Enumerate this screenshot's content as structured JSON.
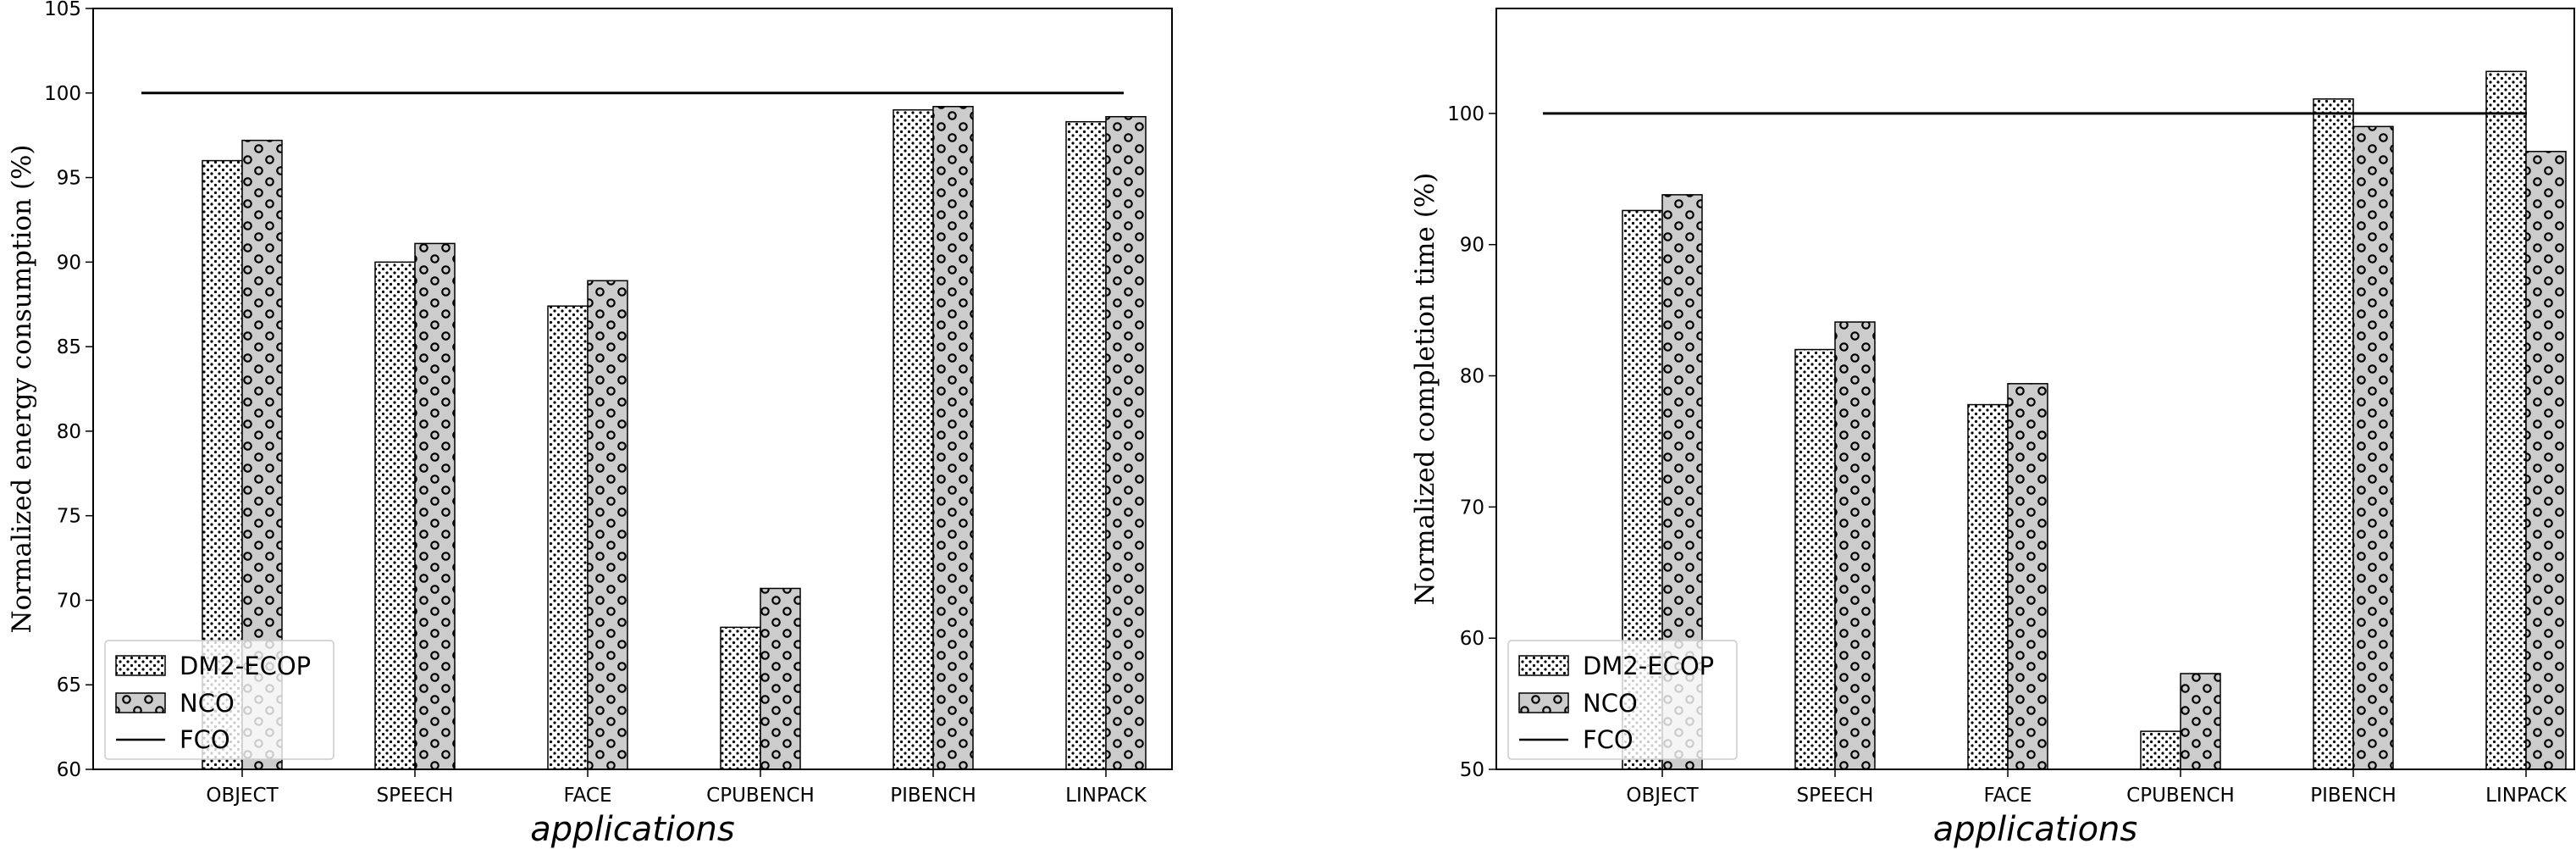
{
  "chart_data": [
    {
      "type": "bar",
      "categories": [
        "OBJECT",
        "SPEECH",
        "FACE",
        "CPUBENCH",
        "PIBENCH",
        "LINPACK"
      ],
      "series": [
        {
          "name": "DM2-ECOP",
          "values": [
            96.0,
            90.0,
            87.4,
            68.4,
            99.0,
            98.3
          ]
        },
        {
          "name": "NCO",
          "values": [
            97.2,
            91.1,
            88.9,
            70.7,
            99.2,
            98.6
          ]
        }
      ],
      "reference_line": {
        "name": "FCO",
        "value": 100
      },
      "xlabel": "applications",
      "ylabel": "Normalized energy consumption (%)",
      "ylim": [
        60,
        105
      ],
      "yticks": [
        60,
        65,
        70,
        75,
        80,
        85,
        90,
        95,
        100,
        105
      ],
      "grid": false,
      "legend_position": "lower-left",
      "colors": {
        "DM2-ECOP": "#ffffff",
        "NCO": "#cccccc",
        "FCO": "#000000"
      }
    },
    {
      "type": "bar",
      "categories": [
        "OBJECT",
        "SPEECH",
        "FACE",
        "CPUBENCH",
        "PIBENCH",
        "LINPACK"
      ],
      "series": [
        {
          "name": "DM2-ECOP",
          "values": [
            92.6,
            82.0,
            77.8,
            52.9,
            101.1,
            103.2
          ]
        },
        {
          "name": "NCO",
          "values": [
            93.8,
            84.1,
            79.4,
            57.3,
            99.0,
            97.1
          ]
        }
      ],
      "reference_line": {
        "name": "FCO",
        "value": 100
      },
      "xlabel": "applications",
      "ylabel": "Normalized completion time (%)",
      "ylim": [
        50,
        108
      ],
      "yticks": [
        50,
        60,
        70,
        80,
        90,
        100
      ],
      "grid": false,
      "legend_position": "lower-left",
      "colors": {
        "DM2-ECOP": "#ffffff",
        "NCO": "#cccccc",
        "FCO": "#000000"
      }
    }
  ]
}
